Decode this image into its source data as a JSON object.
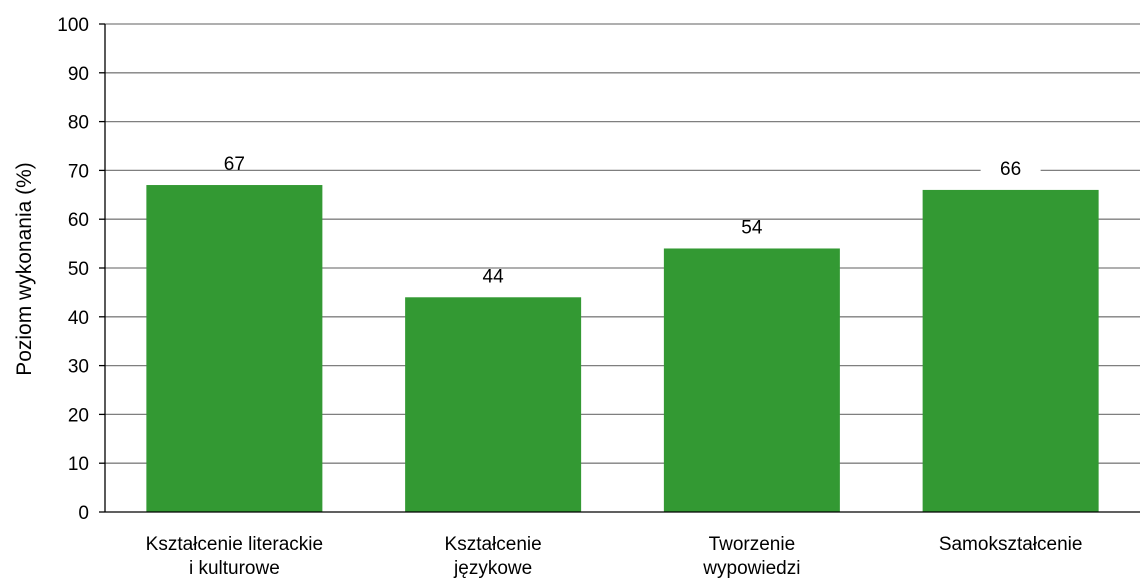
{
  "chart_data": {
    "type": "bar",
    "categories": [
      [
        "Kształcenie literackie",
        "i kulturowe"
      ],
      [
        "Kształcenie",
        "językowe"
      ],
      [
        "Tworzenie",
        "wypowiedzi"
      ],
      [
        "Samokształcenie"
      ]
    ],
    "values": [
      67,
      44,
      54,
      66
    ],
    "data_labels": [
      "67",
      "44",
      "54",
      "66"
    ],
    "title": "",
    "xlabel": "",
    "ylabel": "Poziom wykonania (%)",
    "ylim": [
      0,
      100
    ],
    "yticks": [
      0,
      10,
      20,
      30,
      40,
      50,
      60,
      70,
      80,
      90,
      100
    ],
    "ytick_labels": [
      "0",
      "10",
      "20",
      "30",
      "40",
      "50",
      "60",
      "70",
      "80",
      "90",
      "100"
    ],
    "grid": true,
    "legend": "none",
    "bar_color": "#339933",
    "grid_color": "#7f7f7f"
  }
}
